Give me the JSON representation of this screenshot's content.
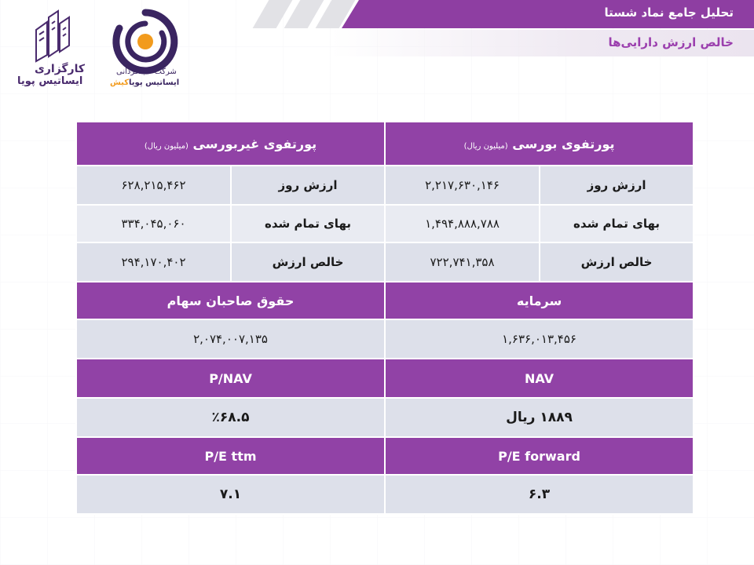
{
  "header": {
    "title": "تحلیل جامع نماد شستا",
    "subtitle": "خالص ارزش دارایی‌ها"
  },
  "logos": {
    "broker_line1": "کارگزاری",
    "broker_line2": "ایساتیس پویا",
    "fund_line1": "شرکت سبدگردانی",
    "fund_line2_main": "ایساتیس پویا",
    "fund_line2_accent": "کیش"
  },
  "exchange_portfolio": {
    "title": "پورتفوی بورسی",
    "unit": "(میلیون ریال)",
    "rows": [
      {
        "label": "ارزش روز",
        "value": "۲,۲۱۷,۶۳۰,۱۴۶"
      },
      {
        "label": "بهای تمام شده",
        "value": "۱,۴۹۴,۸۸۸,۷۸۸"
      },
      {
        "label": "خالص ارزش",
        "value": "۷۲۲,۷۴۱,۳۵۸"
      }
    ]
  },
  "nonexchange_portfolio": {
    "title": "پورتفوی غیربورسی",
    "unit": "(میلیون ریال)",
    "rows": [
      {
        "label": "ارزش روز",
        "value": "۶۲۸,۲۱۵,۴۶۲"
      },
      {
        "label": "بهای تمام شده",
        "value": "۳۳۴,۰۴۵,۰۶۰"
      },
      {
        "label": "خالص ارزش",
        "value": "۲۹۴,۱۷۰,۴۰۲"
      }
    ]
  },
  "capital": {
    "label": "سرمایه",
    "value": "۱,۶۳۶,۰۱۳,۴۵۶"
  },
  "equity": {
    "label": "حقوق صاحبان سهام",
    "value": "۲,۰۷۴,۰۰۷,۱۳۵"
  },
  "nav": {
    "label": "NAV",
    "value": "۱۸۸۹ ریال"
  },
  "p_nav": {
    "label": "P/NAV",
    "value": "٪۶۸.۵"
  },
  "pe_forward": {
    "label": "P/E forward",
    "value": "۶.۳"
  },
  "pe_ttm": {
    "label": "P/E ttm",
    "value": "۷.۱"
  },
  "colors": {
    "purple": "#9142a6",
    "header_purple": "#8e3ea2",
    "row_light": "#dde0ea",
    "accent_orange": "#f29b1d"
  }
}
